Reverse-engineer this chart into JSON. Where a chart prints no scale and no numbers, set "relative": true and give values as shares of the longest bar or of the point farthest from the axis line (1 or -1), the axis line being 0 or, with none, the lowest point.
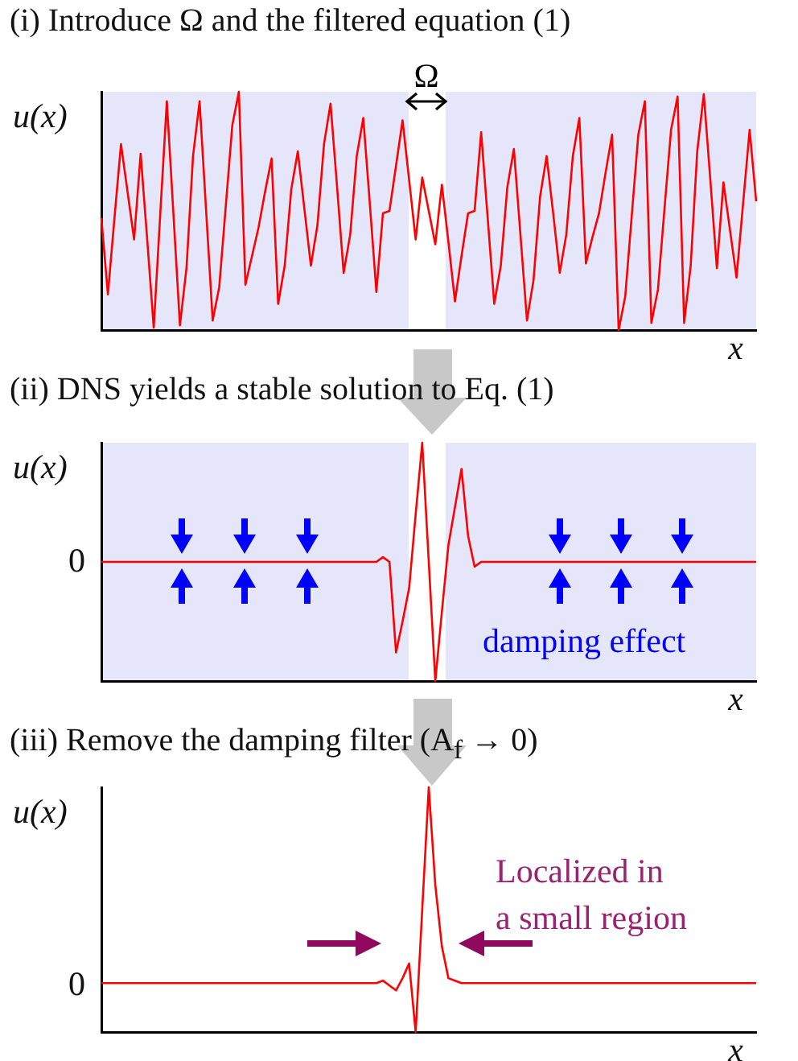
{
  "chart_data": [
    {
      "type": "line",
      "title": "(i) Introduce Ω and the filtered equation (1)",
      "xlabel": "x",
      "ylabel": "u(x)",
      "relative": true,
      "tick_labels": false,
      "marker": "none",
      "color": "#ff0000",
      "categories": [
        null,
        null,
        null,
        null,
        null,
        null,
        null,
        null,
        null,
        null,
        null,
        null,
        null,
        null,
        null,
        null,
        null,
        null,
        null,
        null,
        null,
        null,
        null,
        null,
        null,
        null,
        null,
        null,
        null,
        null,
        null,
        null,
        null,
        null,
        null,
        null,
        null,
        null,
        null,
        null,
        null,
        null,
        null,
        null,
        null,
        null,
        null,
        null,
        null,
        null,
        null,
        null,
        null,
        null,
        null,
        null,
        null,
        null,
        null,
        null,
        null,
        null,
        null,
        null,
        null,
        null,
        null,
        null,
        null,
        null,
        null,
        null,
        null,
        null,
        null,
        null,
        null,
        null,
        null,
        null,
        null,
        null,
        null,
        null,
        null,
        null,
        null,
        null,
        null,
        null,
        null,
        null,
        null,
        null,
        null,
        null,
        null,
        null,
        null,
        null,
        null
      ],
      "values": [
        0.47,
        0.15,
        0.47,
        0.78,
        0.58,
        0.38,
        0.74,
        0.38,
        0.01,
        0.49,
        0.96,
        0.49,
        0.02,
        0.26,
        0.73,
        0.96,
        0.5,
        0.04,
        0.18,
        0.52,
        0.86,
        1.0,
        0.19,
        0.31,
        0.43,
        0.58,
        0.72,
        0.11,
        0.27,
        0.59,
        0.75,
        0.51,
        0.27,
        0.44,
        0.78,
        0.95,
        0.6,
        0.24,
        0.4,
        0.73,
        0.89,
        0.53,
        0.16,
        0.49,
        0.5,
        0.69,
        0.88,
        0.63,
        0.38,
        0.64,
        0.5,
        0.36,
        0.61,
        0.37,
        0.12,
        0.31,
        0.49,
        0.5,
        0.83,
        0.47,
        0.11,
        0.27,
        0.6,
        0.76,
        0.4,
        0.04,
        0.21,
        0.56,
        0.73,
        0.49,
        0.24,
        0.4,
        0.73,
        0.89,
        0.28,
        0.39,
        0.49,
        0.66,
        0.82,
        0,
        0.14,
        0.48,
        0.82,
        0.96,
        0.03,
        0.17,
        0.51,
        0.84,
        0.98,
        0.03,
        0.27,
        0.75,
        0.99,
        0.63,
        0.26,
        0.62,
        0.42,
        0.22,
        0.53,
        0.84,
        0.54
      ],
      "annotations": [
        "Ω"
      ]
    },
    {
      "type": "line",
      "title": "(ii) DNS yields a stable solution to Eq. (1)",
      "xlabel": "x",
      "ylabel": "u(x)",
      "relative": true,
      "tick_labels": false,
      "marker": "none",
      "color": "#ff0000",
      "categories": [
        null,
        null,
        null,
        null,
        null,
        null,
        null,
        null,
        null,
        null,
        null,
        null,
        null,
        null,
        null,
        null,
        null,
        null,
        null,
        null,
        null,
        null,
        null,
        null,
        null,
        null,
        null,
        null,
        null,
        null,
        null,
        null,
        null,
        null,
        null,
        null,
        null,
        null,
        null,
        null,
        null,
        null,
        null,
        null,
        null,
        null,
        null,
        null,
        null,
        null,
        null,
        null,
        null,
        null,
        null,
        null,
        null,
        null,
        null,
        null,
        null,
        null,
        null,
        null,
        null,
        null,
        null,
        null,
        null,
        null,
        null,
        null,
        null,
        null,
        null,
        null,
        null,
        null,
        null,
        null,
        null,
        null,
        null,
        null,
        null,
        null,
        null,
        null,
        null,
        null,
        null,
        null,
        null,
        null,
        null,
        null,
        null,
        null,
        null,
        null,
        null
      ],
      "values": [
        0.5,
        0.5,
        0.5,
        0.5,
        0.5,
        0.5,
        0.5,
        0.5,
        0.5,
        0.5,
        0.5,
        0.5,
        0.5,
        0.5,
        0.5,
        0.5,
        0.5,
        0.5,
        0.5,
        0.5,
        0.5,
        0.5,
        0.5,
        0.5,
        0.5,
        0.5,
        0.5,
        0.5,
        0.5,
        0.5,
        0.5,
        0.5,
        0.5,
        0.5,
        0.5,
        0.5,
        0.5,
        0.5,
        0.5,
        0.5,
        0.5,
        0.5,
        0.5,
        0.52,
        0.5,
        0.12,
        0.25,
        0.39,
        0.7,
        1.0,
        0.5,
        0,
        0.29,
        0.57,
        0.73,
        0.89,
        0.61,
        0.48,
        0.5,
        0.5,
        0.5,
        0.5,
        0.5,
        0.5,
        0.5,
        0.5,
        0.5,
        0.5,
        0.5,
        0.5,
        0.5,
        0.5,
        0.5,
        0.5,
        0.5,
        0.5,
        0.5,
        0.5,
        0.5,
        0.5,
        0.5,
        0.5,
        0.5,
        0.5,
        0.5,
        0.5,
        0.5,
        0.5,
        0.5,
        0.5,
        0.5,
        0.5,
        0.5,
        0.5,
        0.5,
        0.5,
        0.5,
        0.5,
        0.5,
        0.5,
        0.5
      ],
      "annotations": [
        "0",
        "damping effect"
      ]
    },
    {
      "type": "line",
      "title": "(iii) Remove the damping filter (A$_{f}$ → 0)",
      "xlabel": "x",
      "ylabel": "u(x)",
      "relative": true,
      "tick_labels": false,
      "marker": "none",
      "color": "#ff0000",
      "categories": [
        null,
        null,
        null,
        null,
        null,
        null,
        null,
        null,
        null,
        null,
        null,
        null,
        null,
        null,
        null,
        null,
        null,
        null,
        null,
        null,
        null,
        null,
        null,
        null,
        null,
        null,
        null,
        null,
        null,
        null,
        null,
        null,
        null,
        null,
        null,
        null,
        null,
        null,
        null,
        null,
        null,
        null,
        null,
        null,
        null,
        null,
        null,
        null,
        null,
        null,
        null,
        null,
        null,
        null,
        null,
        null,
        null,
        null,
        null,
        null,
        null,
        null,
        null,
        null,
        null,
        null,
        null,
        null,
        null,
        null,
        null,
        null,
        null,
        null,
        null,
        null,
        null,
        null,
        null,
        null,
        null,
        null,
        null,
        null,
        null,
        null,
        null,
        null,
        null,
        null,
        null,
        null,
        null,
        null,
        null,
        null,
        null,
        null,
        null,
        null,
        null
      ],
      "values": [
        0.2,
        0.2,
        0.2,
        0.2,
        0.2,
        0.2,
        0.2,
        0.2,
        0.2,
        0.2,
        0.2,
        0.2,
        0.2,
        0.2,
        0.2,
        0.2,
        0.2,
        0.2,
        0.2,
        0.2,
        0.2,
        0.2,
        0.2,
        0.2,
        0.2,
        0.2,
        0.2,
        0.2,
        0.2,
        0.2,
        0.2,
        0.2,
        0.2,
        0.2,
        0.2,
        0.2,
        0.2,
        0.2,
        0.2,
        0.2,
        0.2,
        0.2,
        0.2,
        0.21,
        0.19,
        0.17,
        0.22,
        0.28,
        0,
        0.5,
        1.0,
        0.6,
        0.35,
        0.22,
        0.21,
        0.2,
        0.2,
        0.2,
        0.2,
        0.2,
        0.2,
        0.2,
        0.2,
        0.2,
        0.2,
        0.2,
        0.2,
        0.2,
        0.2,
        0.2,
        0.2,
        0.2,
        0.2,
        0.2,
        0.2,
        0.2,
        0.2,
        0.2,
        0.2,
        0.2,
        0.2,
        0.2,
        0.2,
        0.2,
        0.2,
        0.2,
        0.2,
        0.2,
        0.2,
        0.2,
        0.2,
        0.2,
        0.2,
        0.2,
        0.2,
        0.2,
        0.2,
        0.2,
        0.2,
        0.2,
        0.2
      ],
      "annotations": [
        "0",
        "Localized in\na small region"
      ]
    }
  ]
}
